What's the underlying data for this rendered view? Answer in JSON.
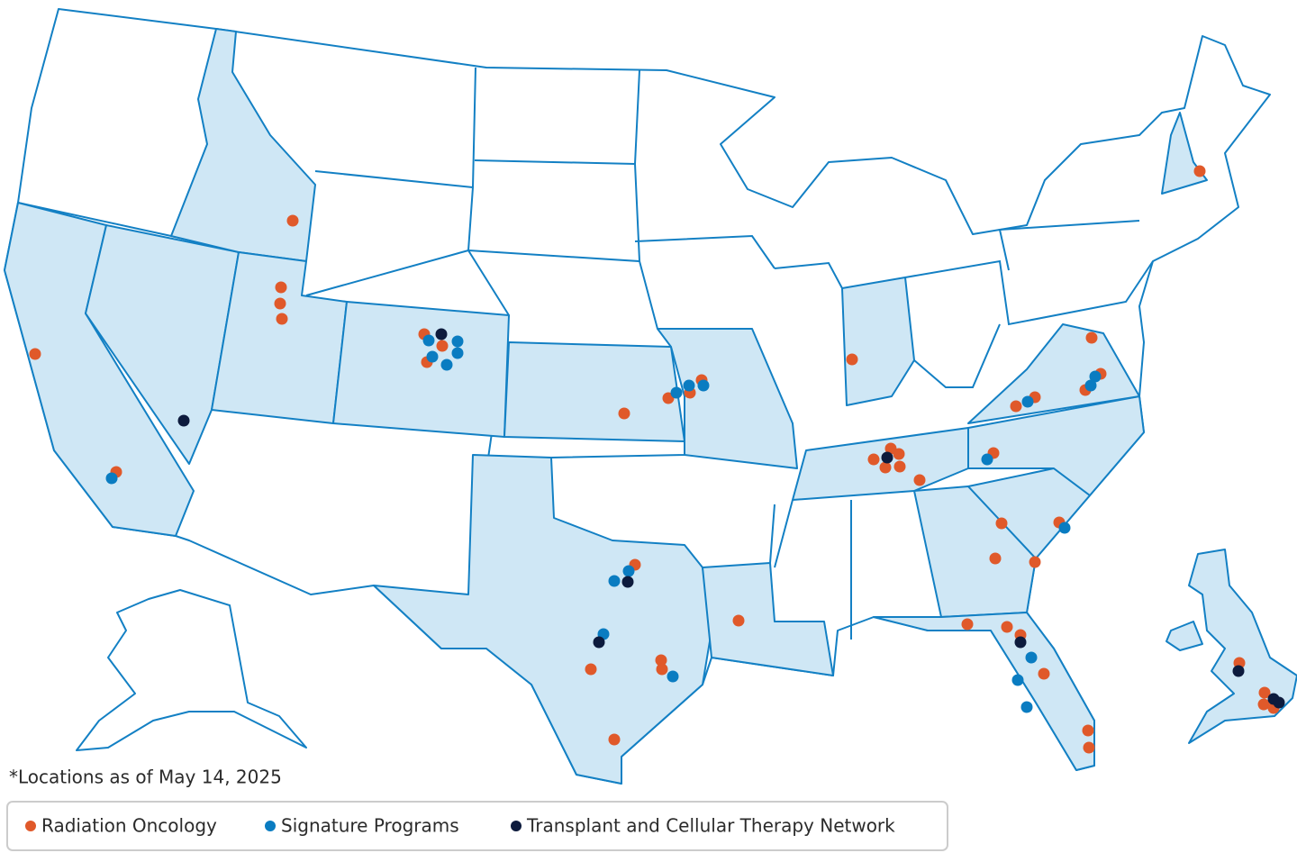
{
  "footnote": "*Locations as of May 14, 2025",
  "legend": [
    {
      "label": "Radiation Oncology",
      "color": "#e0592a"
    },
    {
      "label": "Signature Programs",
      "color": "#0a7cc1"
    },
    {
      "label": "Transplant and Cellular Therapy Network",
      "color": "#0d1b3d"
    }
  ]
}
